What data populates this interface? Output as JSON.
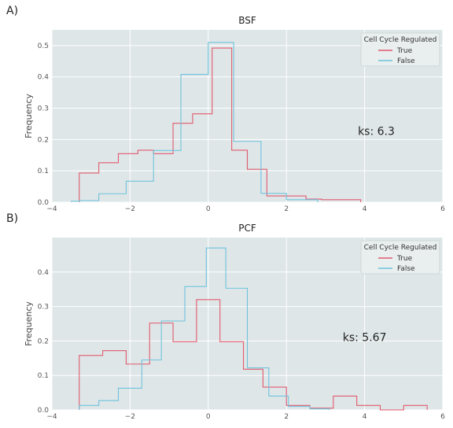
{
  "panels": [
    "A)",
    "B)"
  ],
  "colors": {
    "plot_bg": "#dfe6e8",
    "grid": "#ffffff",
    "true": "#e05a6e",
    "false": "#6ec3dc"
  },
  "chart_data": [
    {
      "type": "histogram",
      "title": "BSF",
      "xlabel": "",
      "ylabel": "Frequency",
      "xlim": [
        -4,
        6
      ],
      "ylim": [
        0,
        0.55
      ],
      "xticks": [
        -4,
        -2,
        0,
        2,
        4,
        6
      ],
      "yticks": [
        0.0,
        0.1,
        0.2,
        0.3,
        0.4,
        0.5
      ],
      "grid": true,
      "legend": {
        "title": "Cell Cycle Regulated",
        "placement": "top-right"
      },
      "annotation": "ks: 6.3",
      "series": [
        {
          "name": "True",
          "edges": [
            -3.3,
            -2.8,
            -2.3,
            -1.8,
            -1.4,
            -0.9,
            -0.4,
            0.1,
            0.6,
            1.0,
            1.5,
            2.0,
            2.5,
            2.9,
            3.9
          ],
          "values": [
            0.093,
            0.126,
            0.155,
            0.166,
            0.155,
            0.252,
            0.282,
            0.492,
            0.166,
            0.105,
            0.02,
            0.02,
            0.01,
            0.008
          ]
        },
        {
          "name": "False",
          "edges": [
            -3.5,
            -3.3,
            -2.8,
            -2.1,
            -1.4,
            -0.7,
            0.0,
            0.65,
            1.35,
            2.0,
            2.8
          ],
          "values": [
            0.003,
            0.005,
            0.027,
            0.067,
            0.165,
            0.408,
            0.51,
            0.194,
            0.028,
            0.008
          ]
        }
      ]
    },
    {
      "type": "histogram",
      "title": "PCF",
      "xlabel": "",
      "ylabel": "Frequency",
      "xlim": [
        -4,
        6
      ],
      "ylim": [
        0,
        0.5
      ],
      "xticks": [
        -4,
        -2,
        0,
        2,
        4,
        6
      ],
      "yticks": [
        0.0,
        0.1,
        0.2,
        0.3,
        0.4
      ],
      "grid": true,
      "legend": {
        "title": "Cell Cycle Regulated",
        "placement": "top-right"
      },
      "annotation": "ks: 5.67",
      "series": [
        {
          "name": "True",
          "edges": [
            -3.3,
            -2.7,
            -2.1,
            -1.5,
            -0.9,
            -0.3,
            0.3,
            0.9,
            1.4,
            2.0,
            2.6,
            3.2,
            3.8,
            4.4,
            5.0,
            5.6
          ],
          "values": [
            0.158,
            0.172,
            0.133,
            0.252,
            0.198,
            0.32,
            0.198,
            0.118,
            0.066,
            0.013,
            0.005,
            0.04,
            0.013,
            0.0,
            0.013
          ]
        },
        {
          "name": "False",
          "edges": [
            -3.3,
            -2.8,
            -2.3,
            -1.7,
            -1.2,
            -0.6,
            -0.05,
            0.45,
            1.0,
            1.55,
            2.05,
            2.6,
            3.1
          ],
          "values": [
            0.013,
            0.027,
            0.063,
            0.145,
            0.258,
            0.358,
            0.47,
            0.353,
            0.122,
            0.04,
            0.01,
            0.003
          ]
        }
      ]
    }
  ]
}
